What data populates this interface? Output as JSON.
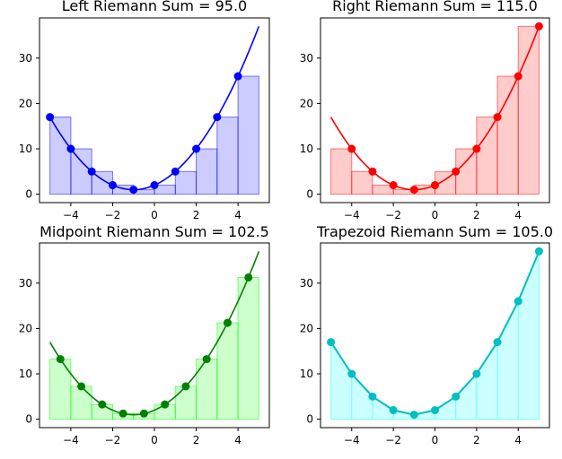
{
  "chart_data": [
    {
      "type": "bar",
      "title": "Left Riemann Sum = 95.0",
      "method": "left",
      "bar_x": [
        -5,
        -4,
        -3,
        -2,
        -1,
        0,
        1,
        2,
        3,
        4
      ],
      "bar_width": 1,
      "bar_values": [
        17,
        10,
        5,
        2,
        1,
        2,
        5,
        10,
        17,
        26
      ],
      "points_x": [
        -5,
        -4,
        -3,
        -2,
        -1,
        0,
        1,
        2,
        3,
        4
      ],
      "points_y": [
        17,
        10,
        5,
        2,
        1,
        2,
        5,
        10,
        17,
        26
      ],
      "curve": "y = x^2 + 2x + 2",
      "xlim": [
        -5.5,
        5.5
      ],
      "ylim": [
        -1.85,
        38.85
      ],
      "xticks": [
        -4,
        -2,
        0,
        2,
        4
      ],
      "yticks": [
        0,
        10,
        20,
        30
      ],
      "line_color": "#0000ff",
      "fill_color": "#0000ff",
      "edge_color": "#0000ff"
    },
    {
      "type": "bar",
      "title": "Right Riemann Sum = 115.0",
      "method": "right",
      "bar_x": [
        -5,
        -4,
        -3,
        -2,
        -1,
        0,
        1,
        2,
        3,
        4
      ],
      "bar_width": 1,
      "bar_values": [
        10,
        5,
        2,
        1,
        2,
        5,
        10,
        17,
        26,
        37
      ],
      "points_x": [
        -4,
        -3,
        -2,
        -1,
        0,
        1,
        2,
        3,
        4,
        5
      ],
      "points_y": [
        10,
        5,
        2,
        1,
        2,
        5,
        10,
        17,
        26,
        37
      ],
      "curve": "y = x^2 + 2x + 2",
      "xlim": [
        -5.5,
        5.5
      ],
      "ylim": [
        -1.85,
        38.85
      ],
      "xticks": [
        -4,
        -2,
        0,
        2,
        4
      ],
      "yticks": [
        0,
        10,
        20,
        30
      ],
      "line_color": "#ff0000",
      "fill_color": "#ff0000",
      "edge_color": "#ff0000"
    },
    {
      "type": "bar",
      "title": "Midpoint Riemann Sum = 102.5",
      "method": "midpoint",
      "bar_x": [
        -5,
        -4,
        -3,
        -2,
        -1,
        0,
        1,
        2,
        3,
        4
      ],
      "bar_width": 1,
      "bar_values": [
        13.25,
        7.25,
        3.25,
        1.25,
        1.25,
        3.25,
        7.25,
        13.25,
        21.25,
        31.25
      ],
      "points_x": [
        -4.5,
        -3.5,
        -2.5,
        -1.5,
        -0.5,
        0.5,
        1.5,
        2.5,
        3.5,
        4.5
      ],
      "points_y": [
        13.25,
        7.25,
        3.25,
        1.25,
        1.25,
        3.25,
        7.25,
        13.25,
        21.25,
        31.25
      ],
      "curve": "y = x^2 + 2x + 2",
      "xlim": [
        -5.5,
        5.5
      ],
      "ylim": [
        -1.85,
        38.85
      ],
      "xticks": [
        -4,
        -2,
        0,
        2,
        4
      ],
      "yticks": [
        0,
        10,
        20,
        30
      ],
      "line_color": "#008000",
      "fill_color": "#00ff00",
      "edge_color": "#00ff00"
    },
    {
      "type": "area",
      "title": "Trapezoid Riemann Sum = 105.0",
      "method": "trapezoid",
      "points_x": [
        -5,
        -4,
        -3,
        -2,
        -1,
        0,
        1,
        2,
        3,
        4,
        5
      ],
      "points_y": [
        17,
        10,
        5,
        2,
        1,
        2,
        5,
        10,
        17,
        26,
        37
      ],
      "curve": "y = x^2 + 2x + 2",
      "xlim": [
        -5.5,
        5.5
      ],
      "ylim": [
        -1.85,
        38.85
      ],
      "xticks": [
        -4,
        -2,
        0,
        2,
        4
      ],
      "yticks": [
        0,
        10,
        20,
        30
      ],
      "line_color": "#00bfbf",
      "fill_color": "#00ffff",
      "edge_color": "#00ffff"
    }
  ]
}
